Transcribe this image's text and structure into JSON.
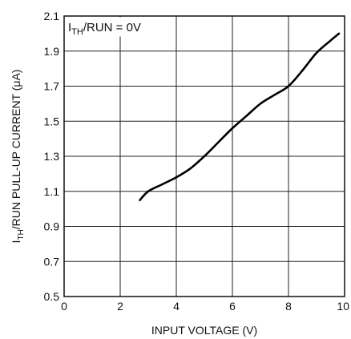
{
  "chart_data": {
    "type": "line",
    "title": "",
    "annotation": {
      "main": "I",
      "sub": "TH",
      "rest": "/RUN = 0V"
    },
    "xlabel": "INPUT VOLTAGE (V)",
    "ylabel": {
      "main": "I",
      "sub": "TH",
      "rest": "/RUN PULL-UP CURRENT (μA)"
    },
    "xlim": [
      0,
      10
    ],
    "ylim": [
      0.5,
      2.1
    ],
    "xticks": [
      0,
      2,
      4,
      6,
      8,
      10
    ],
    "yticks": [
      0.5,
      0.7,
      0.9,
      1.1,
      1.3,
      1.5,
      1.7,
      1.9,
      2.1
    ],
    "xtick_labels": [
      "0",
      "2",
      "4",
      "6",
      "8",
      "10"
    ],
    "ytick_labels": [
      "0.5",
      "0.7",
      "0.9",
      "1.1",
      "1.3",
      "1.5",
      "1.7",
      "1.9",
      "2.1"
    ],
    "grid": true,
    "series": [
      {
        "x": [
          2.7,
          3.0,
          3.5,
          4.0,
          4.5,
          5.0,
          5.5,
          6.0,
          6.5,
          7.0,
          7.5,
          8.0,
          8.5,
          9.0,
          9.5,
          9.8
        ],
        "y": [
          1.05,
          1.1,
          1.14,
          1.18,
          1.23,
          1.3,
          1.38,
          1.46,
          1.53,
          1.6,
          1.65,
          1.7,
          1.79,
          1.89,
          1.96,
          2.0
        ]
      }
    ]
  }
}
